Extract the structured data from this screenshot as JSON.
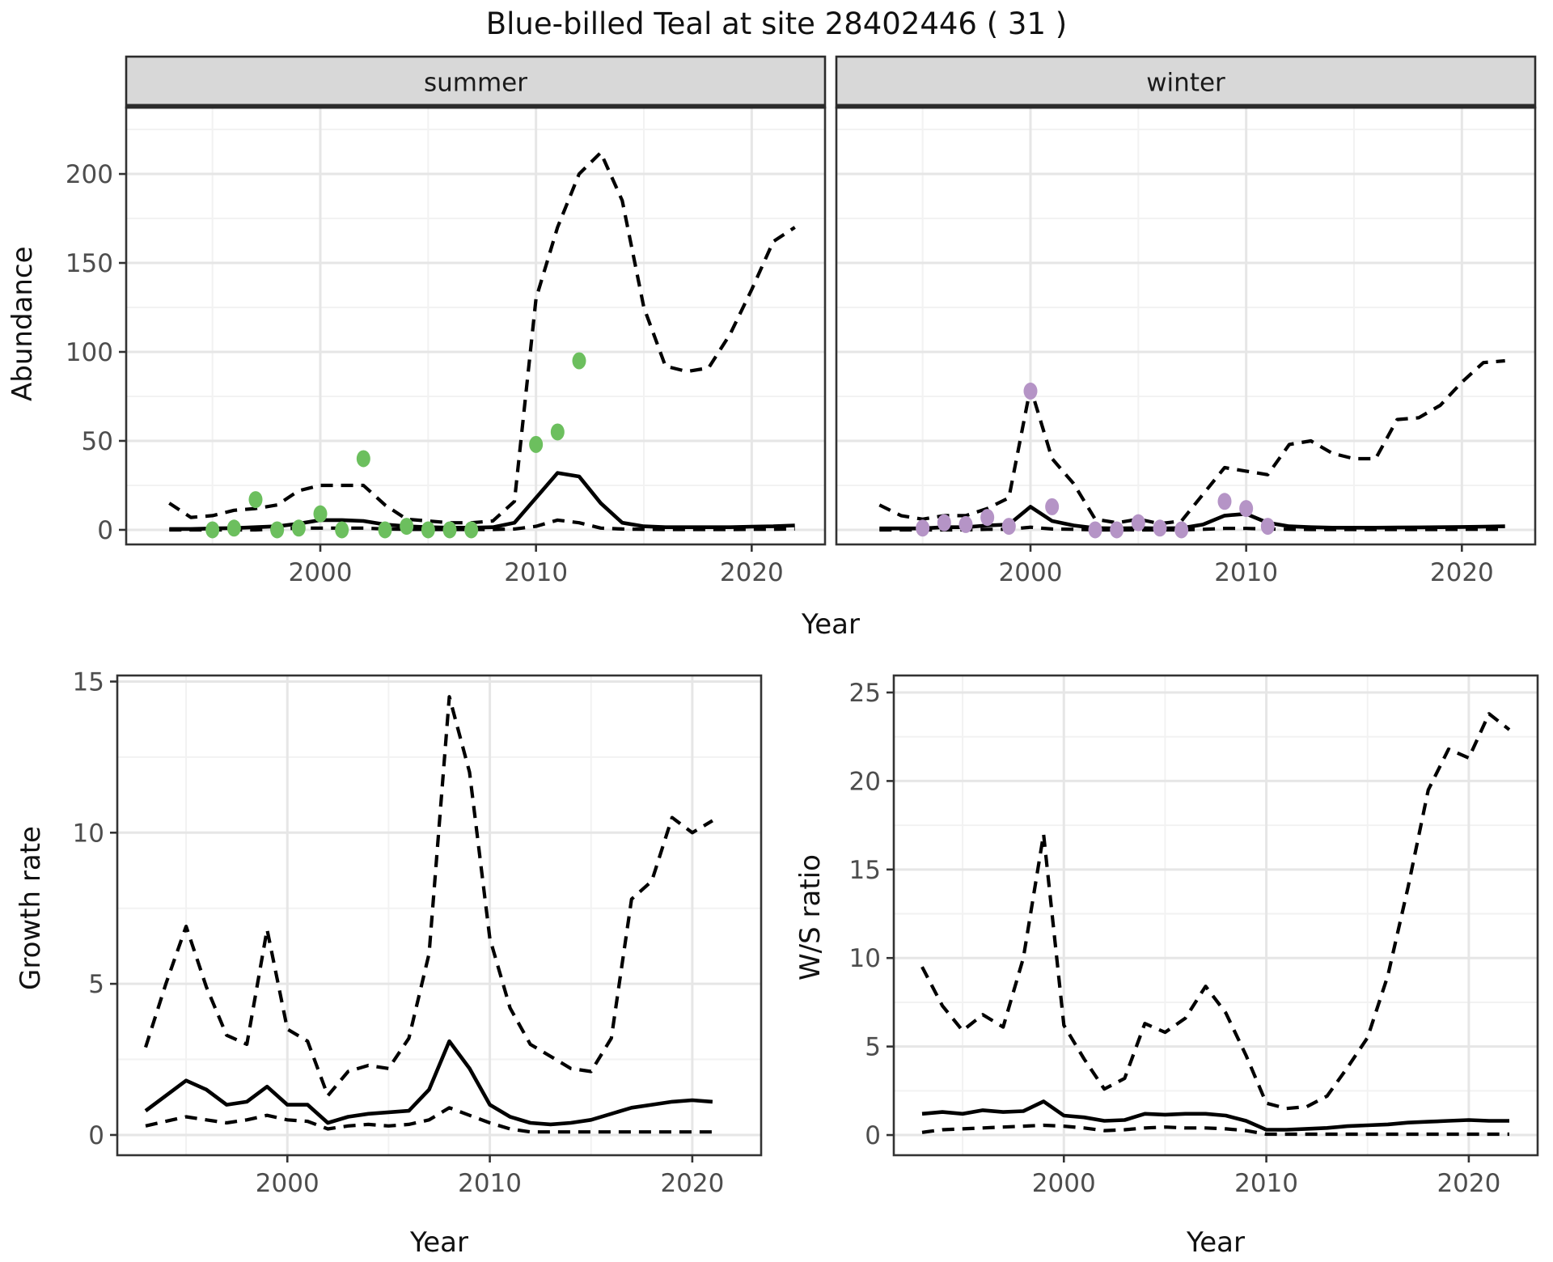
{
  "figure_title": "Blue-billed Teal at site 28402446 ( 31 )",
  "chart_data": {
    "type": "line",
    "title": "Blue-billed Teal at site 28402446 ( 31 )",
    "grid": true,
    "legend": "none",
    "style_notes": {
      "median_line": "solid black",
      "credible_interval_lines": "dashed black",
      "observation_points_summer": "#6CBF5E",
      "observation_points_winter": "#B594C6",
      "facet_strip_fill": "#D8D8D8"
    },
    "panels": [
      {
        "id": "abundance-summer",
        "facet": "summer",
        "ylabel": "Abundance",
        "xlabel": "Year",
        "xlim": [
          1991.0,
          2023.4
        ],
        "ylim": [
          -8.2,
          237.3
        ],
        "xticks": [
          2000,
          2010,
          2020
        ],
        "yticks": [
          0,
          50,
          100,
          150,
          200
        ],
        "point_color": "#6CBF5E",
        "years": [
          1993,
          1994,
          1995,
          1996,
          1997,
          1998,
          1999,
          2000,
          2001,
          2002,
          2003,
          2004,
          2005,
          2006,
          2007,
          2008,
          2009,
          2010,
          2011,
          2012,
          2013,
          2014,
          2015,
          2016,
          2017,
          2018,
          2019,
          2020,
          2021,
          2022
        ],
        "median": [
          0.5,
          0.5,
          0.8,
          1.0,
          1.5,
          2.0,
          3.5,
          5.5,
          5.5,
          5.0,
          3.0,
          2.0,
          1.5,
          1.2,
          1.2,
          1.5,
          4.0,
          18,
          32,
          30,
          15,
          4,
          2,
          1.5,
          1.5,
          1.5,
          1.5,
          1.8,
          2.0,
          2.5
        ],
        "ci_upper": [
          15,
          7,
          8,
          11,
          12,
          14,
          22,
          25,
          25,
          25,
          14,
          6,
          5,
          4,
          4,
          5,
          16,
          130,
          170,
          200,
          212,
          185,
          125,
          92,
          89,
          91,
          110,
          135,
          162,
          170
        ],
        "ci_lower": [
          0,
          0,
          0,
          0,
          0,
          0.5,
          1,
          1,
          1,
          1,
          0.5,
          0.3,
          0.2,
          0.2,
          0.2,
          0.2,
          0.5,
          2,
          5.5,
          4,
          1,
          0.5,
          0.3,
          0.2,
          0.2,
          0.2,
          0.2,
          0.3,
          0.3,
          0.5
        ],
        "obs_years": [
          1995,
          1996,
          1997,
          1998,
          1999,
          2000,
          2001,
          2002,
          2003,
          2004,
          2005,
          2006,
          2007,
          2010,
          2011,
          2012
        ],
        "obs_values": [
          0,
          1,
          17,
          0,
          1,
          9,
          0,
          40,
          0,
          2,
          0,
          0,
          0,
          48,
          55,
          95
        ]
      },
      {
        "id": "abundance-winter",
        "facet": "winter",
        "ylabel": "",
        "xlabel": "Year",
        "xlim": [
          1991.0,
          2023.4
        ],
        "ylim": [
          -8.2,
          237.3
        ],
        "xticks": [
          2000,
          2010,
          2020
        ],
        "yticks": [
          0,
          50,
          100,
          150,
          200
        ],
        "point_color": "#B594C6",
        "years": [
          1993,
          1994,
          1995,
          1996,
          1997,
          1998,
          1999,
          2000,
          2001,
          2002,
          2003,
          2004,
          2005,
          2006,
          2007,
          2008,
          2009,
          2010,
          2011,
          2012,
          2013,
          2014,
          2015,
          2016,
          2017,
          2018,
          2019,
          2020,
          2021,
          2022
        ],
        "median": [
          0.8,
          0.8,
          0.8,
          1.5,
          1.5,
          2.5,
          3.0,
          13,
          5,
          2.5,
          1.0,
          0.8,
          1.0,
          0.8,
          1.0,
          3.0,
          8,
          9,
          4,
          2,
          1.5,
          1.2,
          1.2,
          1.2,
          1.3,
          1.4,
          1.5,
          1.6,
          1.8,
          2.0
        ],
        "ci_upper": [
          14,
          8,
          6,
          8,
          8,
          12,
          18,
          80,
          40,
          26,
          6,
          4,
          6,
          3.5,
          5,
          20,
          35,
          33,
          31,
          48,
          50,
          43,
          40,
          40,
          62,
          63,
          70,
          83,
          94,
          95
        ],
        "ci_lower": [
          0,
          0,
          0,
          0,
          0,
          0.3,
          0.3,
          1.5,
          0.5,
          0.3,
          0,
          0,
          0,
          0,
          0,
          0.3,
          0.8,
          0.8,
          0.5,
          0.3,
          0.2,
          0.2,
          0.2,
          0.2,
          0.2,
          0.2,
          0.2,
          0.3,
          0.3,
          0.3
        ],
        "obs_years": [
          1995,
          1996,
          1997,
          1998,
          1999,
          2000,
          2001,
          2003,
          2004,
          2005,
          2006,
          2007,
          2009,
          2010,
          2011
        ],
        "obs_values": [
          1,
          4,
          3,
          7,
          2,
          78,
          13,
          0,
          0,
          4,
          1,
          0,
          16,
          12,
          2
        ]
      },
      {
        "id": "growth-rate",
        "facet": "",
        "ylabel": "Growth rate",
        "xlabel": "Year",
        "xlim": [
          1991.6,
          2023.4
        ],
        "ylim": [
          -0.67,
          15.2
        ],
        "xticks": [
          2000,
          2010,
          2020
        ],
        "yticks": [
          0,
          5,
          10,
          15
        ],
        "point_color": "",
        "years": [
          1993,
          1994,
          1995,
          1996,
          1997,
          1998,
          1999,
          2000,
          2001,
          2002,
          2003,
          2004,
          2005,
          2006,
          2007,
          2008,
          2009,
          2010,
          2011,
          2012,
          2013,
          2014,
          2015,
          2016,
          2017,
          2018,
          2019,
          2020,
          2021
        ],
        "median": [
          0.8,
          1.3,
          1.8,
          1.5,
          1.0,
          1.1,
          1.6,
          1.0,
          1.0,
          0.4,
          0.6,
          0.7,
          0.75,
          0.8,
          1.5,
          3.1,
          2.2,
          1.0,
          0.6,
          0.4,
          0.35,
          0.4,
          0.5,
          0.7,
          0.9,
          1.0,
          1.1,
          1.15,
          1.1
        ],
        "ci_upper": [
          2.9,
          5.0,
          6.9,
          4.9,
          3.3,
          3.0,
          6.8,
          3.5,
          3.1,
          1.3,
          2.1,
          2.3,
          2.2,
          3.2,
          6.0,
          14.5,
          12.0,
          6.5,
          4.2,
          3.0,
          2.6,
          2.2,
          2.1,
          3.2,
          7.8,
          8.4,
          10.5,
          10.0,
          10.4
        ],
        "ci_lower": [
          0.3,
          0.45,
          0.6,
          0.5,
          0.4,
          0.5,
          0.65,
          0.5,
          0.45,
          0.2,
          0.3,
          0.35,
          0.3,
          0.35,
          0.5,
          0.9,
          0.65,
          0.4,
          0.2,
          0.1,
          0.1,
          0.1,
          0.1,
          0.1,
          0.1,
          0.1,
          0.1,
          0.1,
          0.1
        ],
        "obs_years": [],
        "obs_values": []
      },
      {
        "id": "ws-ratio",
        "facet": "",
        "ylabel": "W/S ratio",
        "xlabel": "Year",
        "xlim": [
          1991.6,
          2023.4
        ],
        "ylim": [
          -1.14,
          25.96
        ],
        "xticks": [
          2000,
          2010,
          2020
        ],
        "yticks": [
          0,
          5,
          10,
          15,
          20,
          25
        ],
        "point_color": "",
        "years": [
          1993,
          1994,
          1995,
          1996,
          1997,
          1998,
          1999,
          2000,
          2001,
          2002,
          2003,
          2004,
          2005,
          2006,
          2007,
          2008,
          2009,
          2010,
          2011,
          2012,
          2013,
          2014,
          2015,
          2016,
          2017,
          2018,
          2019,
          2020,
          2021,
          2022
        ],
        "median": [
          1.2,
          1.3,
          1.2,
          1.4,
          1.3,
          1.35,
          1.9,
          1.1,
          1.0,
          0.8,
          0.85,
          1.2,
          1.15,
          1.2,
          1.2,
          1.1,
          0.8,
          0.3,
          0.3,
          0.35,
          0.4,
          0.5,
          0.55,
          0.6,
          0.7,
          0.75,
          0.8,
          0.85,
          0.8,
          0.8
        ],
        "ci_upper": [
          9.5,
          7.3,
          5.9,
          6.8,
          6.1,
          10.0,
          17.0,
          6.2,
          4.3,
          2.6,
          3.2,
          6.3,
          5.8,
          6.6,
          8.4,
          6.9,
          4.5,
          1.8,
          1.5,
          1.6,
          2.2,
          3.8,
          5.5,
          9.0,
          14.0,
          19.5,
          21.8,
          21.3,
          23.8,
          22.9
        ],
        "ci_lower": [
          0.15,
          0.3,
          0.35,
          0.4,
          0.45,
          0.5,
          0.55,
          0.5,
          0.4,
          0.25,
          0.3,
          0.4,
          0.45,
          0.4,
          0.4,
          0.35,
          0.25,
          0.05,
          0.05,
          0.05,
          0.05,
          0.05,
          0.05,
          0.05,
          0.05,
          0.05,
          0.05,
          0.05,
          0.05,
          0.05
        ],
        "obs_years": [],
        "obs_values": []
      }
    ]
  },
  "theme": {
    "background": "#ffffff",
    "grid_major": "#e6e6e6",
    "grid_minor": "#f2f2f2",
    "panel_border": "#333333",
    "strip_fill": "#d8d8d8",
    "strip_border": "#2b2b2b",
    "tick_label_color": "#4d4d4d",
    "line_color": "#000000"
  }
}
